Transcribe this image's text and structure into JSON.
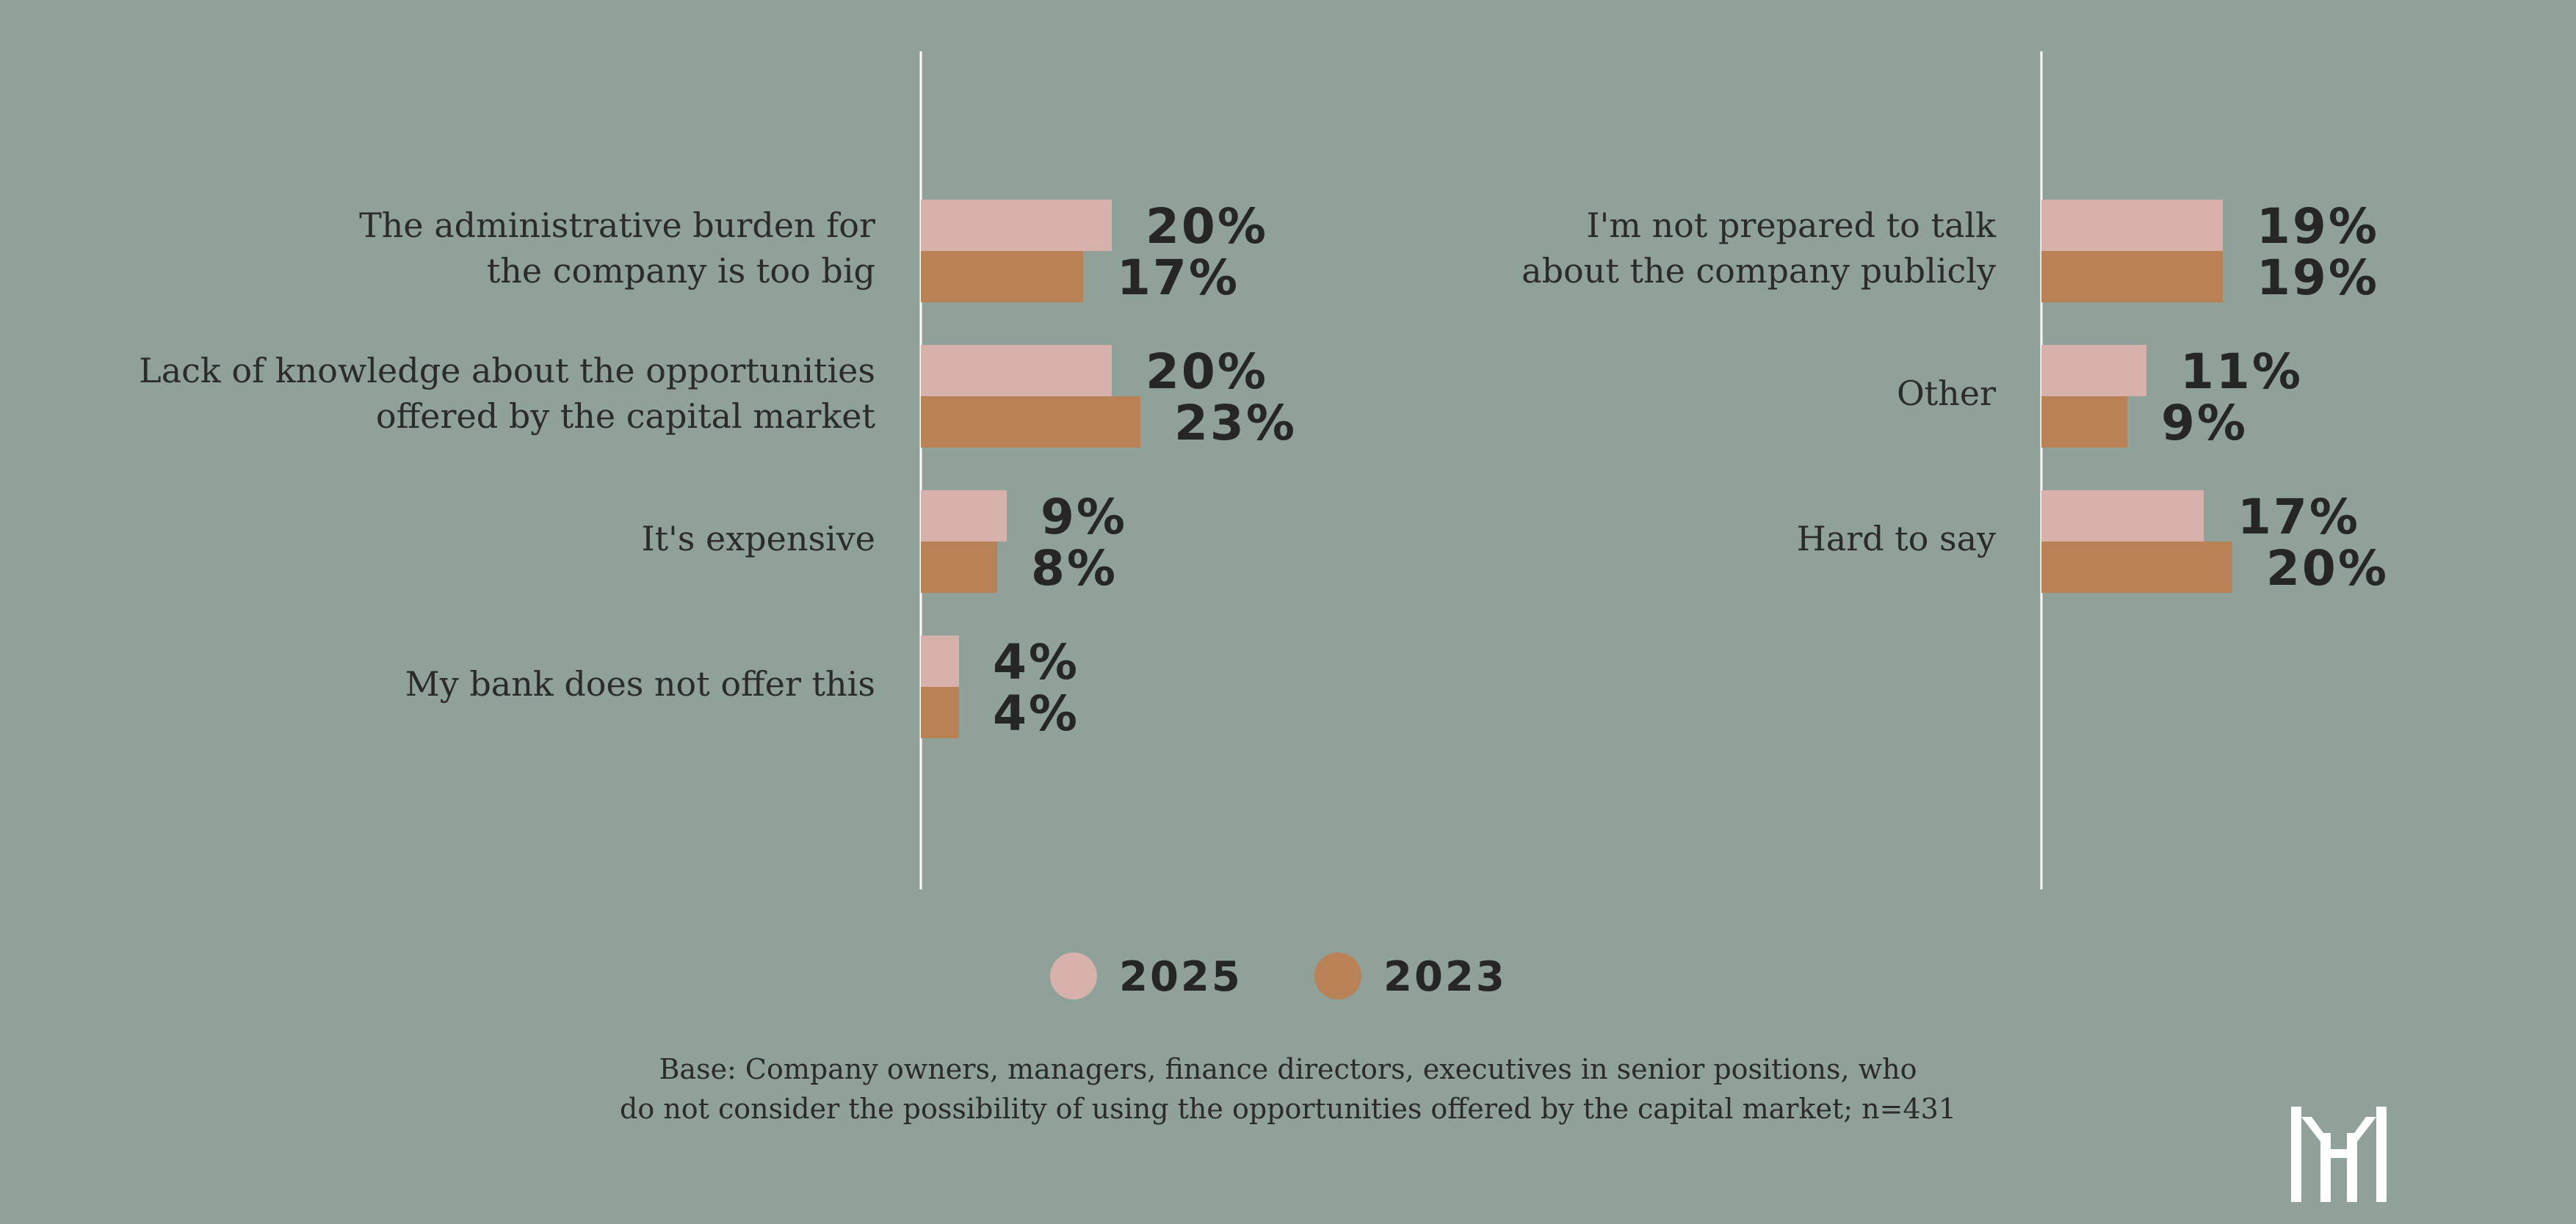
{
  "chart_data": [
    {
      "type": "bar",
      "orientation": "horizontal",
      "categories": [
        [
          "The administrative burden for",
          "the company is too big"
        ],
        [
          "Lack of knowledge about the opportunities",
          "offered by the capital market"
        ],
        [
          "It's expensive"
        ],
        [
          "My bank does not offer this"
        ]
      ],
      "series": [
        {
          "name": "2025",
          "values": [
            20,
            20,
            9,
            4
          ],
          "labels": [
            "20%",
            "20%",
            "9%",
            "4%"
          ]
        },
        {
          "name": "2023",
          "values": [
            17,
            23,
            8,
            4
          ],
          "labels": [
            "17%",
            "23%",
            "8%",
            "4%"
          ]
        }
      ]
    },
    {
      "type": "bar",
      "orientation": "horizontal",
      "categories": [
        [
          "I'm not prepared to talk",
          "about the company publicly"
        ],
        [
          "Other"
        ],
        [
          "Hard to say"
        ]
      ],
      "series": [
        {
          "name": "2025",
          "values": [
            19,
            11,
            17
          ],
          "labels": [
            "19%",
            "11%",
            "17%"
          ]
        },
        {
          "name": "2023",
          "values": [
            19,
            9,
            20
          ],
          "labels": [
            "19%",
            "9%",
            "20%"
          ]
        }
      ]
    }
  ],
  "legend": [
    {
      "name": "2025",
      "color": "#d7b2ad"
    },
    {
      "name": "2023",
      "color": "#b88256"
    }
  ],
  "colors": {
    "background": "#8fa198",
    "bar_2025": "#d7b2ad",
    "bar_2023": "#b88256",
    "axis": "#ffffff",
    "text": "#2b2b2b"
  },
  "footnote": {
    "line1": "Base: Company owners, managers, finance directors, executives in senior positions, who",
    "line2": "do not consider the possibility of using the opportunities offered by the capital market; n=431"
  },
  "logo": {
    "icon": "brand-logo-icon"
  }
}
